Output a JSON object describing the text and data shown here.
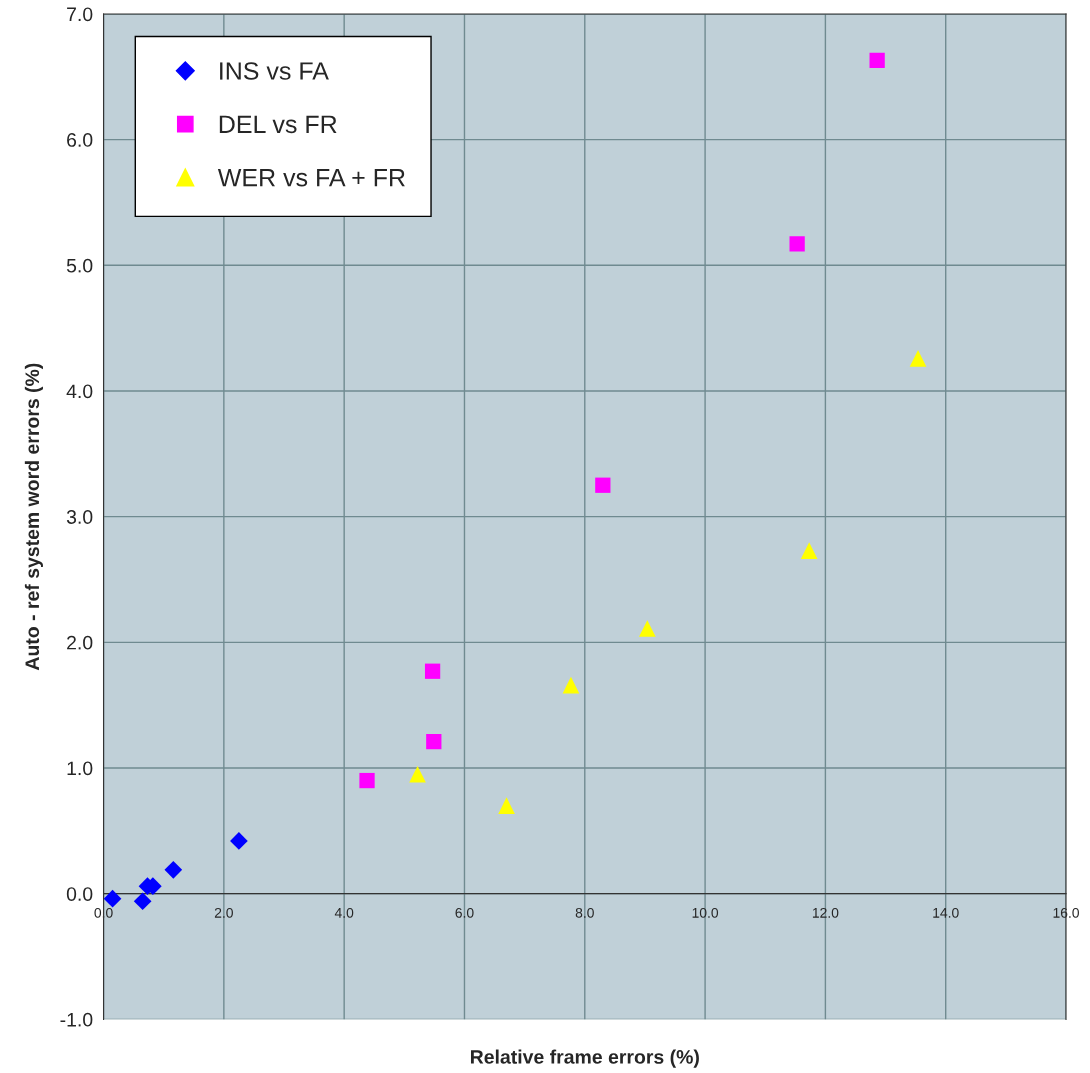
{
  "chart_data": {
    "type": "scatter",
    "xlabel": "Relative frame errors (%)",
    "ylabel": "Auto - ref system word errors (%)",
    "xlim": [
      0,
      16
    ],
    "ylim": [
      -1,
      7
    ],
    "xticks": [
      {
        "value": 0,
        "label": "0.0"
      },
      {
        "value": 2,
        "label": "2.0"
      },
      {
        "value": 4,
        "label": "4.0"
      },
      {
        "value": 6,
        "label": "6.0"
      },
      {
        "value": 8,
        "label": "8.0"
      },
      {
        "value": 10,
        "label": "10.0"
      },
      {
        "value": 12,
        "label": "12.0"
      },
      {
        "value": 14,
        "label": "14.0"
      },
      {
        "value": 16,
        "label": "16.0"
      }
    ],
    "yticks": [
      {
        "value": -1,
        "label": "-1.0"
      },
      {
        "value": 0,
        "label": "0.0"
      },
      {
        "value": 1,
        "label": "1.0"
      },
      {
        "value": 2,
        "label": "2.0"
      },
      {
        "value": 3,
        "label": "3.0"
      },
      {
        "value": 4,
        "label": "4.0"
      },
      {
        "value": 5,
        "label": "5.0"
      },
      {
        "value": 6,
        "label": "6.0"
      },
      {
        "value": 7,
        "label": "7.0"
      }
    ],
    "grid": true,
    "legend": "top left",
    "series": [
      {
        "name": "INS vs FA",
        "color": "#0000ff",
        "marker": "diamond",
        "x": [
          0.15,
          0.65,
          0.73,
          0.82,
          1.16,
          2.25
        ],
        "values": [
          -0.04,
          -0.06,
          0.06,
          0.06,
          0.19,
          0.42
        ]
      },
      {
        "name": "DEL vs FR",
        "color": "#ff00ff",
        "marker": "square",
        "x": [
          12.86,
          11.53,
          8.3,
          5.47,
          5.49,
          4.38
        ],
        "values": [
          6.63,
          5.17,
          3.25,
          1.77,
          1.21,
          0.9
        ]
      },
      {
        "name": "WER vs FA + FR",
        "color": "#ffff00",
        "marker": "triangle",
        "x": [
          13.54,
          11.73,
          9.04,
          7.77,
          5.22,
          6.7
        ],
        "values": [
          4.26,
          2.73,
          2.11,
          1.66,
          0.95,
          0.7
        ]
      }
    ]
  }
}
